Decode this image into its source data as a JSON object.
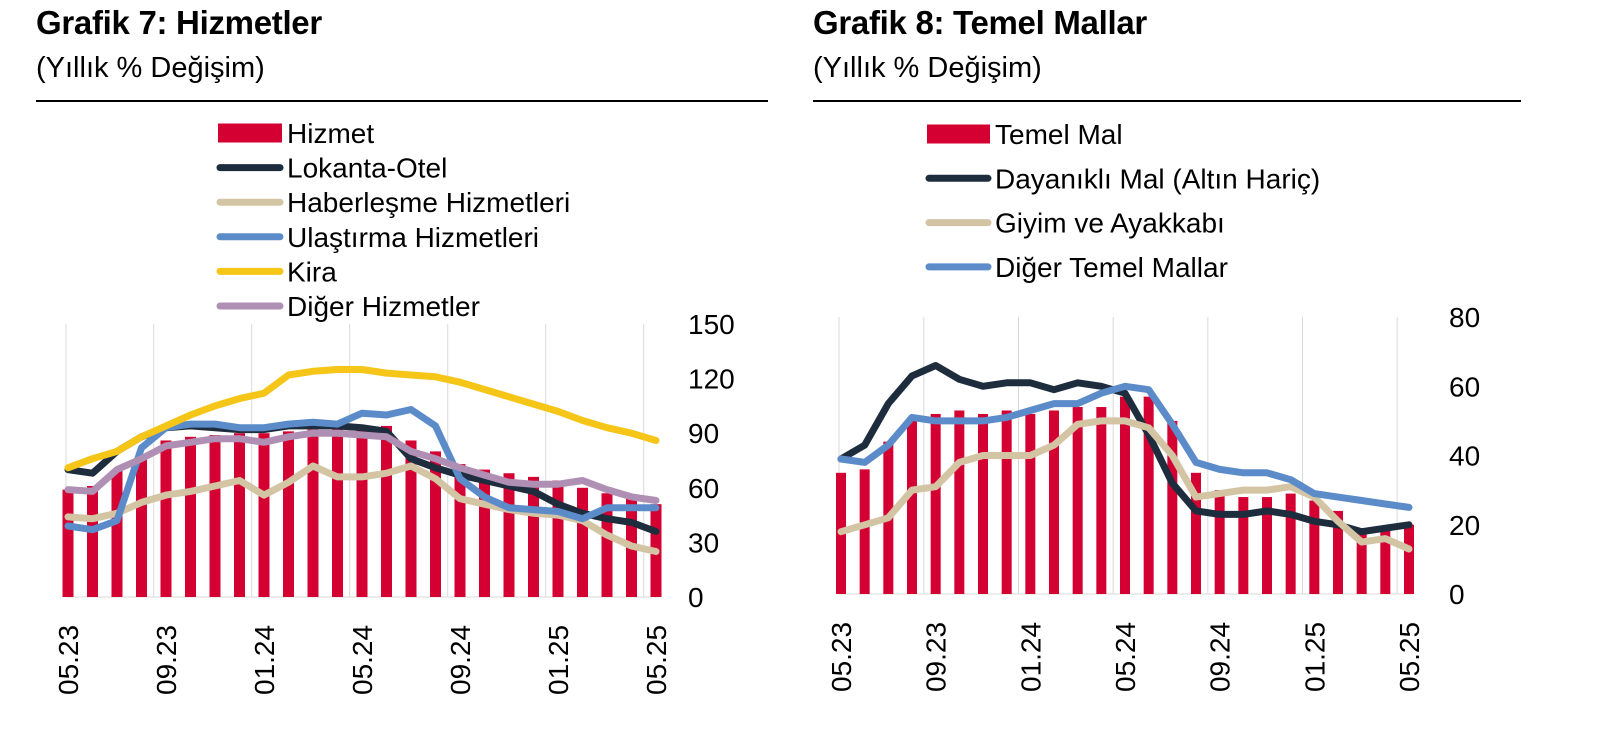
{
  "chart_data": [
    {
      "type": "bar+line",
      "title": "Grafik 7: Hizmetler",
      "subtitle": "(Yıllık % Değişim)",
      "xlabel": "",
      "ylabel": "",
      "x": [
        "05.23",
        "06.23",
        "07.23",
        "08.23",
        "09.23",
        "10.23",
        "11.23",
        "12.23",
        "01.24",
        "02.24",
        "03.24",
        "04.24",
        "05.24",
        "06.24",
        "07.24",
        "08.24",
        "09.24",
        "10.24",
        "11.24",
        "12.24",
        "01.25",
        "02.25",
        "03.25",
        "04.25",
        "05.25"
      ],
      "x_tick_labels": [
        "05.23",
        "09.23",
        "01.24",
        "05.24",
        "09.24",
        "01.25",
        "05.25"
      ],
      "ylim": [
        0,
        150
      ],
      "y_ticks": [
        "0",
        "30",
        "60",
        "90",
        "120",
        "150"
      ],
      "y_axis_side": "right",
      "grid": "vertical",
      "legend_position": "top",
      "series": [
        {
          "name": "Hizmet",
          "kind": "bar",
          "color": "#d50032",
          "values": [
            59,
            61,
            70,
            78,
            86,
            88,
            89,
            90,
            90,
            91,
            92,
            93,
            94,
            94,
            86,
            80,
            73,
            70,
            68,
            66,
            64,
            60,
            57,
            54,
            51
          ]
        },
        {
          "name": "Lokanta-Otel",
          "kind": "line",
          "color": "#1e2d3e",
          "values": [
            70,
            68,
            80,
            88,
            93,
            94,
            93,
            92,
            92,
            94,
            94,
            94,
            93,
            91,
            76,
            71,
            67,
            64,
            61,
            58,
            51,
            46,
            43,
            41,
            36
          ]
        },
        {
          "name": "Haberleşme Hizmetleri",
          "kind": "line",
          "color": "#d3c4a4",
          "values": [
            44,
            43,
            46,
            52,
            56,
            58,
            61,
            64,
            56,
            63,
            72,
            66,
            66,
            68,
            72,
            65,
            54,
            51,
            48,
            46,
            45,
            42,
            34,
            28,
            25
          ]
        },
        {
          "name": "Ulaştırma Hizmetleri",
          "kind": "line",
          "color": "#5b8bc9",
          "values": [
            39,
            37,
            42,
            82,
            93,
            95,
            95,
            93,
            93,
            95,
            96,
            95,
            101,
            100,
            103,
            94,
            65,
            55,
            49,
            48,
            47,
            43,
            49,
            49,
            49
          ]
        },
        {
          "name": "Kira",
          "kind": "line",
          "color": "#f5c518",
          "values": [
            71,
            76,
            80,
            88,
            94,
            100,
            105,
            109,
            112,
            122,
            124,
            125,
            125,
            123,
            122,
            121,
            118,
            114,
            110,
            106,
            102,
            97,
            93,
            90,
            86
          ]
        },
        {
          "name": "Diğer Hizmetler",
          "kind": "line",
          "color": "#b08fb4",
          "values": [
            59,
            58,
            70,
            76,
            83,
            85,
            87,
            87,
            85,
            88,
            90,
            90,
            89,
            88,
            80,
            76,
            71,
            67,
            63,
            62,
            62,
            64,
            59,
            55,
            53
          ]
        }
      ]
    },
    {
      "type": "bar+line",
      "title": "Grafik 8: Temel Mallar",
      "subtitle": "(Yıllık % Değişim)",
      "xlabel": "",
      "ylabel": "",
      "x": [
        "05.23",
        "06.23",
        "07.23",
        "08.23",
        "09.23",
        "10.23",
        "11.23",
        "12.23",
        "01.24",
        "02.24",
        "03.24",
        "04.24",
        "05.24",
        "06.24",
        "07.24",
        "08.24",
        "09.24",
        "10.24",
        "11.24",
        "12.24",
        "01.25",
        "02.25",
        "03.25",
        "04.25",
        "05.25"
      ],
      "x_tick_labels": [
        "05.23",
        "09.23",
        "01.24",
        "05.24",
        "09.24",
        "01.25",
        "05.25"
      ],
      "ylim": [
        0,
        80
      ],
      "y_ticks": [
        "0",
        "20",
        "40",
        "60",
        "80"
      ],
      "y_axis_side": "right",
      "grid": "vertical",
      "legend_position": "top",
      "series": [
        {
          "name": "Temel Mal",
          "kind": "bar",
          "color": "#d50032",
          "values": [
            35,
            36,
            44,
            51,
            52,
            53,
            52,
            53,
            52,
            53,
            54,
            54,
            57,
            57,
            50,
            35,
            30,
            28,
            28,
            29,
            27,
            24,
            19,
            19,
            20
          ]
        },
        {
          "name": "Dayanıklı Mal (Altın Hariç)",
          "kind": "line",
          "color": "#1e2d3e",
          "values": [
            39,
            43,
            55,
            63,
            66,
            62,
            60,
            61,
            61,
            59,
            61,
            60,
            58,
            46,
            32,
            24,
            23,
            23,
            24,
            23,
            21,
            20,
            18,
            19,
            20
          ]
        },
        {
          "name": "Giyim ve Ayakkabı",
          "kind": "line",
          "color": "#d3c4a4",
          "values": [
            18,
            20,
            22,
            30,
            31,
            38,
            40,
            40,
            40,
            43,
            49,
            50,
            50,
            48,
            40,
            28,
            29,
            30,
            30,
            31,
            28,
            21,
            15,
            16,
            13
          ]
        },
        {
          "name": "Diğer Temel Mallar",
          "kind": "line",
          "color": "#5b8bc9",
          "values": [
            39,
            38,
            43,
            51,
            50,
            50,
            50,
            51,
            53,
            55,
            55,
            58,
            60,
            59,
            49,
            38,
            36,
            35,
            35,
            33,
            29,
            28,
            27,
            26,
            25
          ]
        }
      ]
    }
  ]
}
